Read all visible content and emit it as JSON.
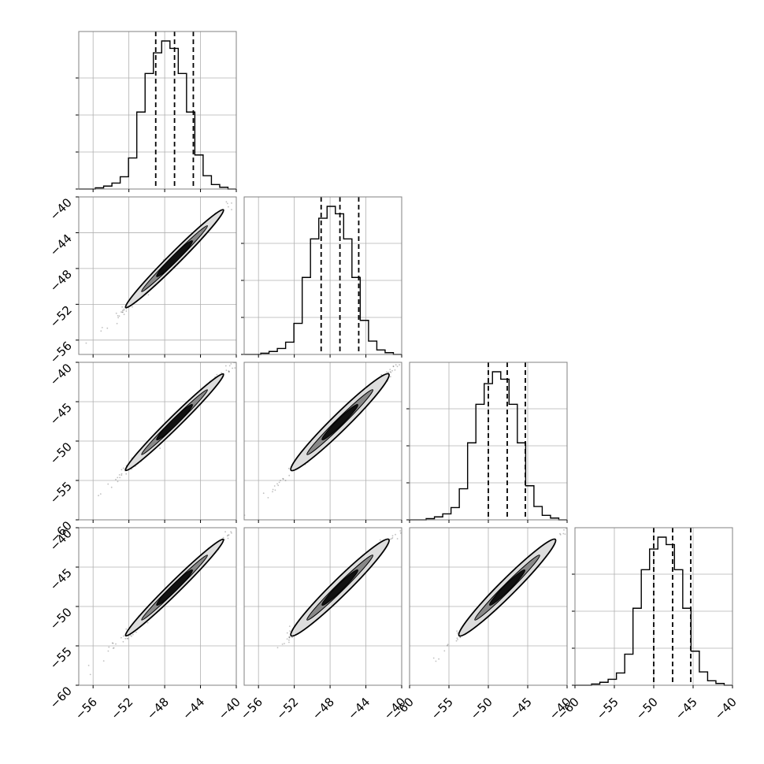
{
  "chart_data": {
    "type": "corner",
    "title": "",
    "grid": true,
    "colors": {
      "line": "#000000",
      "grid": "#b0b0b0",
      "frame": "#808080",
      "fill_outer": "#dddddd",
      "fill_mid": "#888888",
      "fill_inner": "#111111"
    },
    "params": [
      {
        "range": [
          -57.6,
          -40.0
        ],
        "ticks": [
          -56,
          -52,
          -48,
          -44,
          -40
        ],
        "tick_labels": [
          "−56",
          "−52",
          "−48",
          "−44",
          "−40"
        ],
        "quantiles": [
          -49.0,
          -46.9,
          -44.8
        ],
        "hist": [
          0,
          0,
          0.008,
          0.02,
          0.04,
          0.083,
          0.21,
          0.52,
          0.78,
          0.92,
          1.0,
          0.95,
          0.78,
          0.52,
          0.23,
          0.09,
          0.03,
          0.012,
          0
        ]
      },
      {
        "range": [
          -57.6,
          -40.0
        ],
        "ticks": [
          -56,
          -52,
          -48,
          -44,
          -40
        ],
        "tick_labels": [
          "−56",
          "−52",
          "−48",
          "−44",
          "−40"
        ],
        "quantiles": [
          -49.0,
          -46.9,
          -44.8
        ],
        "hist": [
          0,
          0,
          0.008,
          0.02,
          0.04,
          0.083,
          0.21,
          0.52,
          0.78,
          0.92,
          1.0,
          0.95,
          0.78,
          0.52,
          0.23,
          0.09,
          0.03,
          0.012,
          0
        ]
      },
      {
        "range": [
          -60.0,
          -40.0
        ],
        "ticks": [
          -60,
          -55,
          -50,
          -45,
          -40
        ],
        "tick_labels": [
          "−60",
          "−55",
          "−50",
          "−45",
          "−40"
        ],
        "quantiles": [
          -50.0,
          -47.6,
          -45.3
        ],
        "hist": [
          0,
          0,
          0.008,
          0.02,
          0.04,
          0.083,
          0.21,
          0.52,
          0.78,
          0.92,
          1.0,
          0.95,
          0.78,
          0.52,
          0.23,
          0.09,
          0.03,
          0.012,
          0
        ]
      },
      {
        "range": [
          -60.0,
          -40.0
        ],
        "ticks": [
          -60,
          -55,
          -50,
          -45,
          -40
        ],
        "tick_labels": [
          "−60",
          "−55",
          "−50",
          "−45",
          "−40"
        ],
        "quantiles": [
          -50.0,
          -47.6,
          -45.3
        ],
        "hist": [
          0,
          0,
          0.008,
          0.02,
          0.04,
          0.083,
          0.21,
          0.52,
          0.78,
          0.92,
          1.0,
          0.95,
          0.78,
          0.52,
          0.23,
          0.09,
          0.03,
          0.012,
          0
        ]
      }
    ],
    "scatter": {
      "r": 0.995,
      "samples": 500,
      "contour_levels": [
        0.39,
        0.86,
        0.99
      ]
    }
  }
}
